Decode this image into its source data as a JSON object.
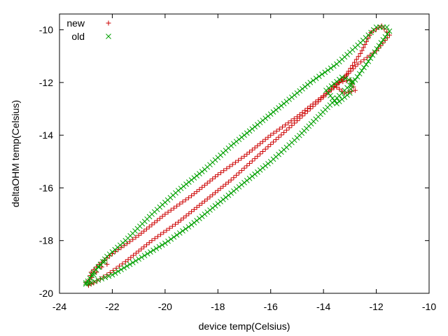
{
  "chart_data": {
    "type": "scatter",
    "title": "",
    "xlabel": "device temp(Celsius)",
    "ylabel": "deltaOHM temp(Celsius)",
    "xlim": [
      -24,
      -10
    ],
    "ylim": [
      -20,
      -9.4
    ],
    "xticks": [
      -24,
      -22,
      -20,
      -18,
      -16,
      -14,
      -12,
      -10
    ],
    "yticks": [
      -20,
      -18,
      -16,
      -14,
      -12,
      -10
    ],
    "grid": false,
    "legend_position": "top-left",
    "series": [
      {
        "name": "new",
        "marker": "plus",
        "color": "#cc0000",
        "outer_loop": [
          [
            -22.9,
            -19.7
          ],
          [
            -22.8,
            -19.2
          ],
          [
            -22.5,
            -18.9
          ],
          [
            -22.0,
            -18.5
          ],
          [
            -21.0,
            -17.8
          ],
          [
            -20.0,
            -17.0
          ],
          [
            -19.0,
            -16.3
          ],
          [
            -18.0,
            -15.5
          ],
          [
            -17.0,
            -14.8
          ],
          [
            -16.0,
            -14.0
          ],
          [
            -15.0,
            -13.3
          ],
          [
            -14.0,
            -12.5
          ],
          [
            -13.2,
            -11.8
          ],
          [
            -12.6,
            -10.9
          ],
          [
            -12.2,
            -10.1
          ],
          [
            -11.8,
            -9.85
          ],
          [
            -11.5,
            -10.2
          ],
          [
            -12.0,
            -10.8
          ],
          [
            -12.7,
            -11.3
          ],
          [
            -13.5,
            -12.1
          ],
          [
            -14.5,
            -13.0
          ],
          [
            -15.5,
            -13.9
          ],
          [
            -16.5,
            -14.8
          ],
          [
            -17.5,
            -15.7
          ],
          [
            -18.5,
            -16.5
          ],
          [
            -19.5,
            -17.3
          ],
          [
            -20.5,
            -18.0
          ],
          [
            -21.5,
            -18.8
          ],
          [
            -22.2,
            -19.3
          ],
          [
            -22.7,
            -19.6
          ],
          [
            -22.9,
            -19.7
          ]
        ],
        "inner_loop": [
          [
            -13.4,
            -12.0
          ],
          [
            -13.0,
            -11.9
          ],
          [
            -12.8,
            -12.3
          ],
          [
            -13.2,
            -12.4
          ],
          [
            -13.6,
            -12.1
          ],
          [
            -13.4,
            -12.0
          ]
        ],
        "cluster": [
          [
            -23.0,
            -19.6
          ],
          [
            -22.8,
            -19.4
          ],
          [
            -22.6,
            -19.2
          ],
          [
            -22.4,
            -19.0
          ],
          [
            -22.2,
            -18.9
          ]
        ]
      },
      {
        "name": "old",
        "marker": "cross",
        "color": "#00a000",
        "outer_loop": [
          [
            -23.0,
            -19.65
          ],
          [
            -22.7,
            -19.2
          ],
          [
            -22.2,
            -18.6
          ],
          [
            -21.5,
            -18.0
          ],
          [
            -20.5,
            -17.0
          ],
          [
            -19.5,
            -16.1
          ],
          [
            -18.5,
            -15.3
          ],
          [
            -17.5,
            -14.4
          ],
          [
            -16.5,
            -13.6
          ],
          [
            -15.5,
            -12.8
          ],
          [
            -14.5,
            -12.0
          ],
          [
            -13.5,
            -11.3
          ],
          [
            -12.5,
            -10.4
          ],
          [
            -12.0,
            -9.9
          ],
          [
            -11.6,
            -9.9
          ],
          [
            -11.5,
            -10.05
          ],
          [
            -11.9,
            -10.6
          ],
          [
            -12.3,
            -11.2
          ],
          [
            -12.8,
            -11.9
          ],
          [
            -13.4,
            -12.5
          ],
          [
            -14.2,
            -13.3
          ],
          [
            -15.0,
            -14.1
          ],
          [
            -16.0,
            -15.0
          ],
          [
            -17.0,
            -15.8
          ],
          [
            -18.0,
            -16.6
          ],
          [
            -19.0,
            -17.4
          ],
          [
            -20.0,
            -18.1
          ],
          [
            -21.0,
            -18.7
          ],
          [
            -22.0,
            -19.3
          ],
          [
            -22.8,
            -19.6
          ],
          [
            -23.0,
            -19.65
          ]
        ],
        "inner_loop": [
          [
            -13.9,
            -12.3
          ],
          [
            -13.3,
            -11.8
          ],
          [
            -12.9,
            -11.95
          ],
          [
            -13.0,
            -12.4
          ],
          [
            -13.5,
            -12.8
          ],
          [
            -13.9,
            -12.3
          ]
        ],
        "cluster": [
          [
            -23.0,
            -19.6
          ],
          [
            -22.7,
            -19.3
          ],
          [
            -22.5,
            -19.0
          ],
          [
            -22.3,
            -18.8
          ]
        ]
      }
    ]
  }
}
